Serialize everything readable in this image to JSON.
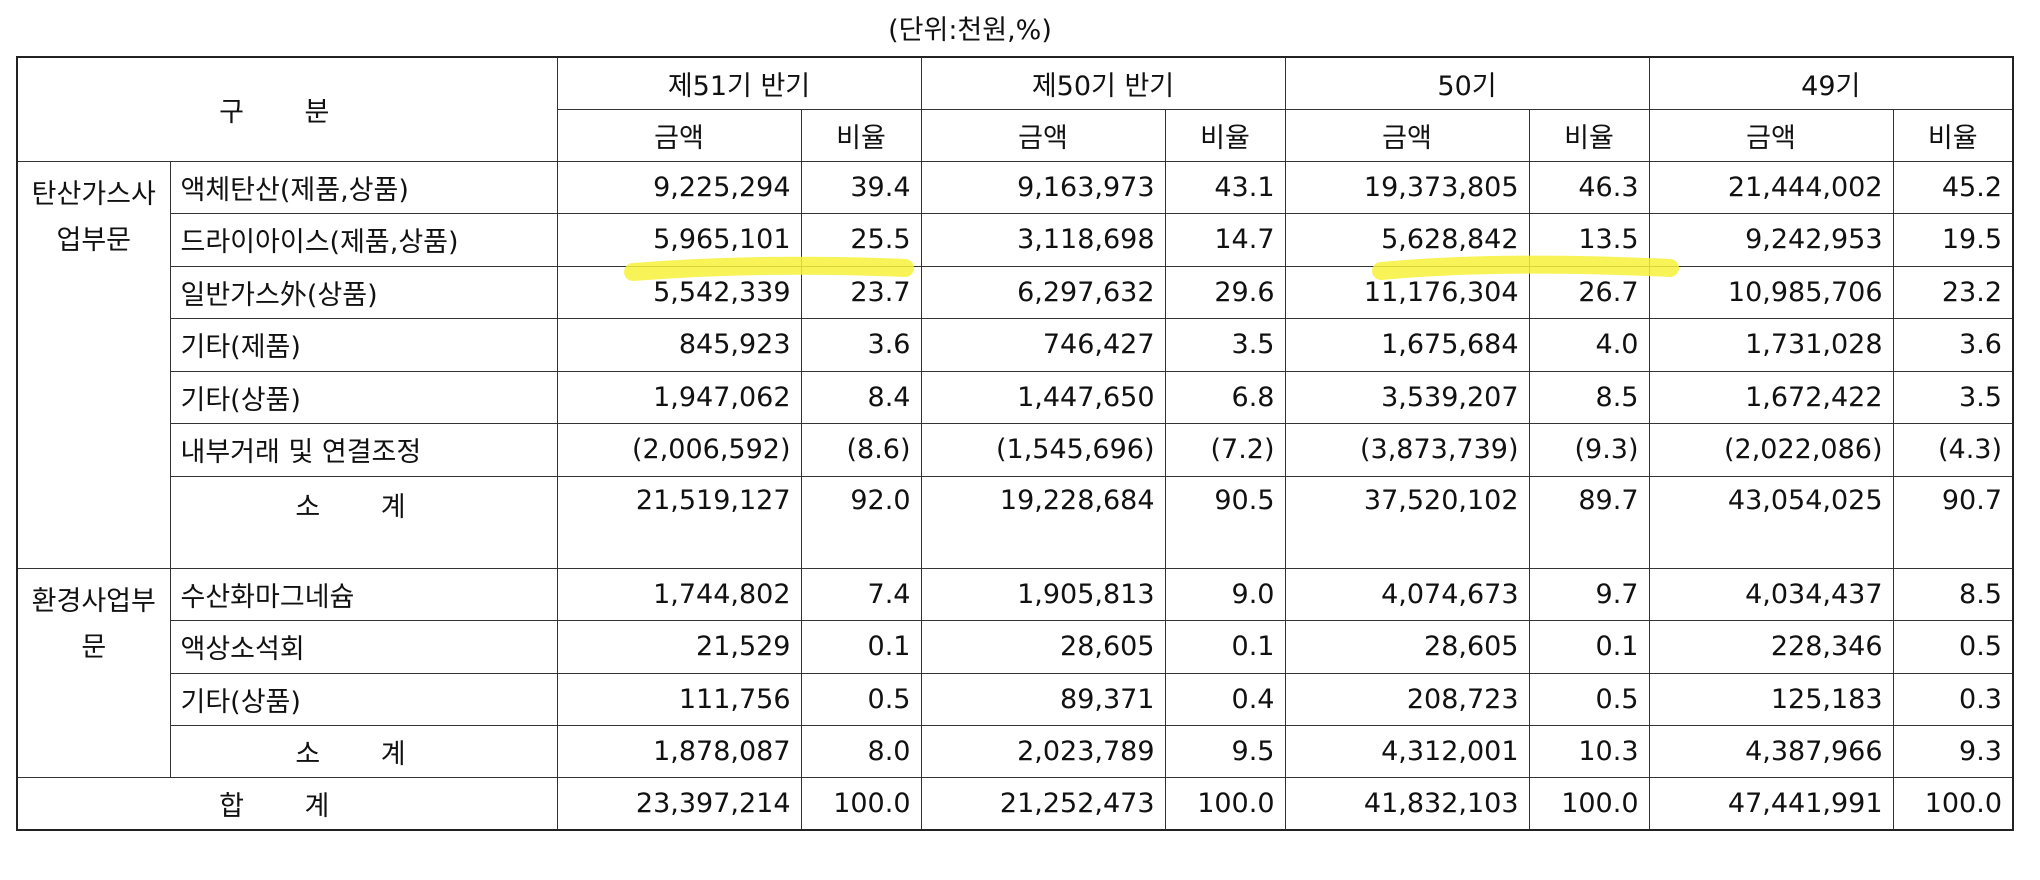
{
  "unit_label": "(단위:천원,%)",
  "header": {
    "category": "구   분",
    "periods": [
      "제51기 반기",
      "제50기 반기",
      "50기",
      "49기"
    ],
    "amount": "금액",
    "ratio": "비율"
  },
  "sections": [
    {
      "name": "탄산가스사업부문",
      "rows": [
        {
          "label": "액체탄산(제품,상품)",
          "v": [
            "9,225,294",
            "39.4",
            "9,163,973",
            "43.1",
            "19,373,805",
            "46.3",
            "21,444,002",
            "45.2"
          ]
        },
        {
          "label": "드라이아이스(제품,상품)",
          "v": [
            "5,965,101",
            "25.5",
            "3,118,698",
            "14.7",
            "5,628,842",
            "13.5",
            "9,242,953",
            "19.5"
          ]
        },
        {
          "label": "일반가스外(상품)",
          "v": [
            "5,542,339",
            "23.7",
            "6,297,632",
            "29.6",
            "11,176,304",
            "26.7",
            "10,985,706",
            "23.2"
          ]
        },
        {
          "label": "기타(제품)",
          "v": [
            "845,923",
            "3.6",
            "746,427",
            "3.5",
            "1,675,684",
            "4.0",
            "1,731,028",
            "3.6"
          ]
        },
        {
          "label": "기타(상품)",
          "v": [
            "1,947,062",
            "8.4",
            "1,447,650",
            "6.8",
            "3,539,207",
            "8.5",
            "1,672,422",
            "3.5"
          ]
        },
        {
          "label": "내부거래 및 연결조정",
          "v": [
            "(2,006,592)",
            "(8.6)",
            "(1,545,696)",
            "(7.2)",
            "(3,873,739)",
            "(9.3)",
            "(2,022,086)",
            "(4.3)"
          ]
        }
      ],
      "subtotal": {
        "label": "소 계",
        "v": [
          "21,519,127",
          "92.0",
          "19,228,684",
          "90.5",
          "37,520,102",
          "89.7",
          "43,054,025",
          "90.7"
        ]
      }
    },
    {
      "name": "환경사업부문",
      "rows": [
        {
          "label": "수산화마그네슘",
          "v": [
            "1,744,802",
            "7.4",
            "1,905,813",
            "9.0",
            "4,074,673",
            "9.7",
            "4,034,437",
            "8.5"
          ]
        },
        {
          "label": "액상소석회",
          "v": [
            "21,529",
            "0.1",
            "28,605",
            "0.1",
            "28,605",
            "0.1",
            "228,346",
            "0.5"
          ]
        },
        {
          "label": "기타(상품)",
          "v": [
            "111,756",
            "0.5",
            "89,371",
            "0.4",
            "208,723",
            "0.5",
            "125,183",
            "0.3"
          ]
        }
      ],
      "subtotal": {
        "label": "소 계",
        "v": [
          "1,878,087",
          "8.0",
          "2,023,789",
          "9.5",
          "4,312,001",
          "10.3",
          "4,387,966",
          "9.3"
        ]
      }
    }
  ],
  "total": {
    "label": "합 계",
    "v": [
      "23,397,214",
      "100.0",
      "21,252,473",
      "100.0",
      "41,832,103",
      "100.0",
      "47,441,991",
      "100.0"
    ]
  },
  "highlight_color": "#f7f13a"
}
